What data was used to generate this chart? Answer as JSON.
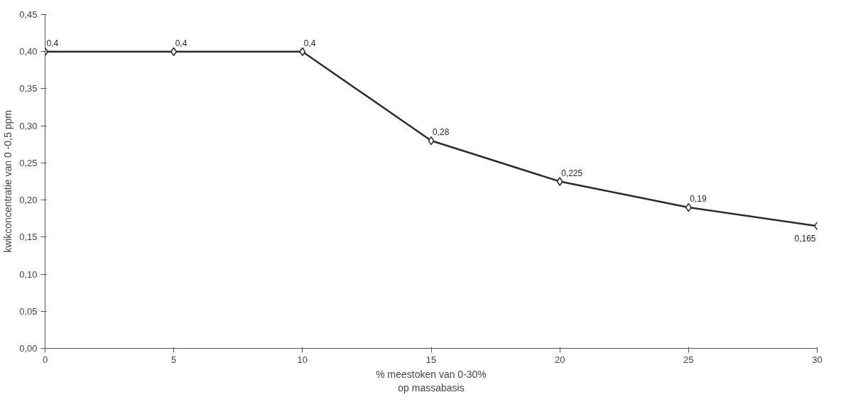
{
  "chart_data": {
    "type": "line",
    "xlabel": "% meestoken van 0-30%\nop massabasis",
    "ylabel": "kwikconcentratie van 0 -0,5 ppm",
    "x": [
      0,
      5,
      10,
      15,
      20,
      25,
      30
    ],
    "series": [
      {
        "color": "#2b2b2b",
        "values": [
          0.4,
          0.4,
          0.4,
          0.28,
          0.225,
          0.19,
          0.165
        ]
      }
    ],
    "value_labels": [
      "0,4",
      "0,4",
      "0,4",
      "0,28",
      "0,225",
      "0,19",
      "0,165"
    ],
    "xlim": [
      0,
      30
    ],
    "xticks": [
      0,
      5,
      10,
      15,
      20,
      25,
      30
    ],
    "ylim": [
      0,
      0.45
    ],
    "yticks": [
      {
        "value": 0,
        "label": "0,00"
      },
      {
        "value": 0.05,
        "label": "0,05"
      },
      {
        "value": 0.1,
        "label": "0,10"
      },
      {
        "value": 0.15,
        "label": "0,15"
      },
      {
        "value": 0.2,
        "label": "0,20"
      },
      {
        "value": 0.25,
        "label": "0,25"
      },
      {
        "value": 0.3,
        "label": "0,30"
      },
      {
        "value": 0.35,
        "label": "0,35"
      },
      {
        "value": 0.4,
        "label": "0,40"
      },
      {
        "value": 0.45,
        "label": "0,45"
      }
    ],
    "marker": "diamond",
    "line_style": "solid"
  }
}
